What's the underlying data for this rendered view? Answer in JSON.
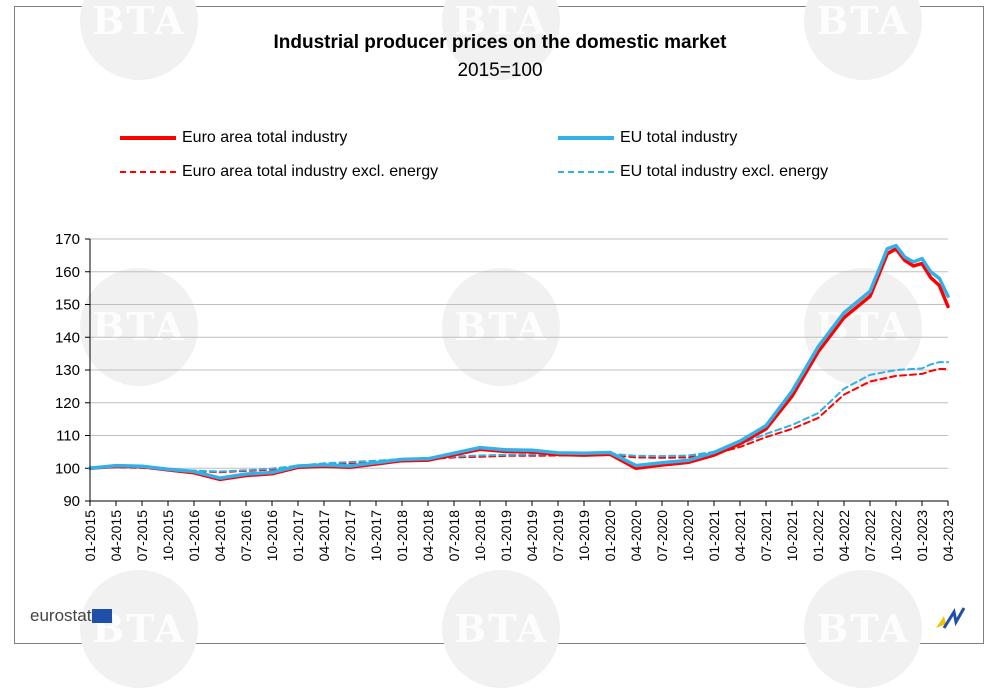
{
  "header": {
    "title": "Industrial producer prices on the domestic market",
    "subtitle": "2015=100"
  },
  "footer": {
    "logo_text": "eurostat"
  },
  "watermark": {
    "text": "BTA"
  },
  "colors": {
    "euro_area": "#ff0000",
    "eu": "#33b0e8",
    "grid": "#bfbfbf",
    "axis": "#000000"
  },
  "chart_data": {
    "type": "line",
    "title": "Industrial producer prices on the domestic market",
    "subtitle": "2015=100",
    "xlabel": "",
    "ylabel": "",
    "ylim": [
      90,
      170
    ],
    "yticks": [
      90,
      100,
      110,
      120,
      130,
      140,
      150,
      160,
      170
    ],
    "grid": true,
    "legend_position": "top",
    "x_range": [
      "01-2015",
      "04-2023"
    ],
    "x_ticks": [
      "01-2015",
      "04-2015",
      "07-2015",
      "10-2015",
      "01-2016",
      "04-2016",
      "07-2016",
      "10-2016",
      "01-2017",
      "04-2017",
      "07-2017",
      "10-2017",
      "01-2018",
      "04-2018",
      "07-2018",
      "10-2018",
      "01-2019",
      "04-2019",
      "07-2019",
      "10-2019",
      "01-2020",
      "04-2020",
      "07-2020",
      "10-2020",
      "01-2021",
      "04-2021",
      "07-2021",
      "10-2021",
      "01-2022",
      "04-2022",
      "07-2022",
      "10-2022",
      "01-2023",
      "04-2023"
    ],
    "series": [
      {
        "name": "Euro area total industry",
        "color": "#ff0000",
        "style": "solid",
        "points": [
          [
            "01-2015",
            100
          ],
          [
            "04-2015",
            100.6
          ],
          [
            "07-2015",
            100.5
          ],
          [
            "10-2015",
            99.5
          ],
          [
            "01-2016",
            98.6
          ],
          [
            "04-2016",
            96.6
          ],
          [
            "07-2016",
            97.8
          ],
          [
            "10-2016",
            98.3
          ],
          [
            "01-2017",
            100.3
          ],
          [
            "04-2017",
            100.6
          ],
          [
            "07-2017",
            100.3
          ],
          [
            "10-2017",
            101.3
          ],
          [
            "01-2018",
            102.3
          ],
          [
            "04-2018",
            102.5
          ],
          [
            "07-2018",
            104.1
          ],
          [
            "10-2018",
            105.8
          ],
          [
            "01-2019",
            105.1
          ],
          [
            "04-2019",
            105.0
          ],
          [
            "07-2019",
            104.2
          ],
          [
            "10-2019",
            104.0
          ],
          [
            "01-2020",
            104.3
          ],
          [
            "04-2020",
            100.0
          ],
          [
            "07-2020",
            101.0
          ],
          [
            "10-2020",
            101.8
          ],
          [
            "01-2021",
            104.0
          ],
          [
            "04-2021",
            107.5
          ],
          [
            "07-2021",
            112.0
          ],
          [
            "10-2021",
            122.0
          ],
          [
            "01-2022",
            135.5
          ],
          [
            "04-2022",
            146.0
          ],
          [
            "07-2022",
            152.5
          ],
          [
            "08-2022",
            159.0
          ],
          [
            "09-2022",
            165.5
          ],
          [
            "10-2022",
            167.0
          ],
          [
            "11-2022",
            163.5
          ],
          [
            "12-2022",
            161.8
          ],
          [
            "01-2023",
            162.5
          ],
          [
            "02-2023",
            158.2
          ],
          [
            "03-2023",
            155.8
          ],
          [
            "04-2023",
            149.4
          ]
        ]
      },
      {
        "name": "EU total industry",
        "color": "#33b0e8",
        "style": "solid",
        "points": [
          [
            "01-2015",
            100
          ],
          [
            "04-2015",
            100.8
          ],
          [
            "07-2015",
            100.6
          ],
          [
            "10-2015",
            99.7
          ],
          [
            "01-2016",
            99.0
          ],
          [
            "04-2016",
            97.0
          ],
          [
            "07-2016",
            98.2
          ],
          [
            "10-2016",
            98.7
          ],
          [
            "01-2017",
            100.7
          ],
          [
            "04-2017",
            101.0
          ],
          [
            "07-2017",
            100.7
          ],
          [
            "10-2017",
            101.7
          ],
          [
            "01-2018",
            102.7
          ],
          [
            "04-2018",
            102.9
          ],
          [
            "07-2018",
            104.6
          ],
          [
            "10-2018",
            106.3
          ],
          [
            "01-2019",
            105.6
          ],
          [
            "04-2019",
            105.5
          ],
          [
            "07-2019",
            104.7
          ],
          [
            "10-2019",
            104.6
          ],
          [
            "01-2020",
            104.8
          ],
          [
            "04-2020",
            100.8
          ],
          [
            "07-2020",
            101.7
          ],
          [
            "10-2020",
            102.4
          ],
          [
            "01-2021",
            104.8
          ],
          [
            "04-2021",
            108.3
          ],
          [
            "07-2021",
            113.0
          ],
          [
            "10-2021",
            123.5
          ],
          [
            "01-2022",
            137.0
          ],
          [
            "04-2022",
            147.5
          ],
          [
            "07-2022",
            154.0
          ],
          [
            "08-2022",
            160.5
          ],
          [
            "09-2022",
            167.0
          ],
          [
            "10-2022",
            168.0
          ],
          [
            "11-2022",
            164.5
          ],
          [
            "12-2022",
            163.0
          ],
          [
            "01-2023",
            164.0
          ],
          [
            "02-2023",
            160.0
          ],
          [
            "03-2023",
            158.0
          ],
          [
            "04-2023",
            152.5
          ]
        ]
      },
      {
        "name": "Euro area total industry excl. energy",
        "color": "#ff0000",
        "style": "dashed",
        "points": [
          [
            "01-2015",
            100
          ],
          [
            "04-2015",
            100.3
          ],
          [
            "07-2015",
            100.1
          ],
          [
            "10-2015",
            99.5
          ],
          [
            "01-2016",
            99.2
          ],
          [
            "04-2016",
            98.8
          ],
          [
            "07-2016",
            99.2
          ],
          [
            "10-2016",
            99.6
          ],
          [
            "01-2017",
            100.5
          ],
          [
            "04-2017",
            101.2
          ],
          [
            "07-2017",
            101.5
          ],
          [
            "10-2017",
            101.9
          ],
          [
            "01-2018",
            102.4
          ],
          [
            "04-2018",
            102.8
          ],
          [
            "07-2018",
            103.3
          ],
          [
            "10-2018",
            103.5
          ],
          [
            "01-2019",
            103.8
          ],
          [
            "04-2019",
            103.8
          ],
          [
            "07-2019",
            103.9
          ],
          [
            "10-2019",
            104.0
          ],
          [
            "01-2020",
            104.0
          ],
          [
            "04-2020",
            103.3
          ],
          [
            "07-2020",
            103.2
          ],
          [
            "10-2020",
            103.3
          ],
          [
            "01-2021",
            104.4
          ],
          [
            "04-2021",
            106.5
          ],
          [
            "07-2021",
            109.5
          ],
          [
            "10-2021",
            112.0
          ],
          [
            "01-2022",
            115.3
          ],
          [
            "04-2022",
            122.5
          ],
          [
            "07-2022",
            126.5
          ],
          [
            "10-2022",
            128.2
          ],
          [
            "01-2023",
            128.8
          ],
          [
            "02-2023",
            129.7
          ],
          [
            "03-2023",
            130.3
          ],
          [
            "04-2023",
            130.3
          ]
        ]
      },
      {
        "name": "EU total industry excl. energy",
        "color": "#33b0e8",
        "style": "dashed",
        "points": [
          [
            "01-2015",
            100
          ],
          [
            "04-2015",
            100.4
          ],
          [
            "07-2015",
            100.2
          ],
          [
            "10-2015",
            99.6
          ],
          [
            "01-2016",
            99.3
          ],
          [
            "04-2016",
            99.0
          ],
          [
            "07-2016",
            99.4
          ],
          [
            "10-2016",
            99.9
          ],
          [
            "01-2017",
            100.8
          ],
          [
            "04-2017",
            101.5
          ],
          [
            "07-2017",
            101.9
          ],
          [
            "10-2017",
            102.3
          ],
          [
            "01-2018",
            102.8
          ],
          [
            "04-2018",
            103.2
          ],
          [
            "07-2018",
            103.6
          ],
          [
            "10-2018",
            103.9
          ],
          [
            "01-2019",
            104.1
          ],
          [
            "04-2019",
            104.2
          ],
          [
            "07-2019",
            104.3
          ],
          [
            "10-2019",
            104.3
          ],
          [
            "01-2020",
            104.4
          ],
          [
            "04-2020",
            103.8
          ],
          [
            "07-2020",
            103.7
          ],
          [
            "10-2020",
            103.9
          ],
          [
            "01-2021",
            105.0
          ],
          [
            "04-2021",
            107.3
          ],
          [
            "07-2021",
            110.5
          ],
          [
            "10-2021",
            113.2
          ],
          [
            "01-2022",
            116.8
          ],
          [
            "04-2022",
            124.3
          ],
          [
            "07-2022",
            128.5
          ],
          [
            "10-2022",
            130.0
          ],
          [
            "01-2023",
            130.5
          ],
          [
            "02-2023",
            131.7
          ],
          [
            "03-2023",
            132.4
          ],
          [
            "04-2023",
            132.4
          ]
        ]
      }
    ]
  }
}
